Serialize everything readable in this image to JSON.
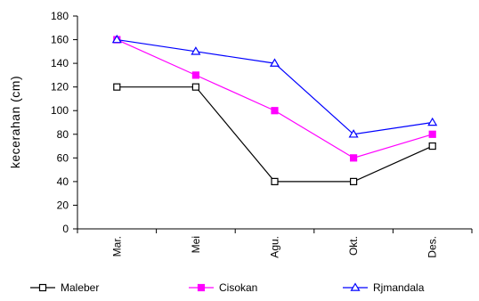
{
  "chart_data": {
    "type": "line",
    "categories": [
      "Mar.",
      "Mei",
      "Agu.",
      "Okt.",
      "Des."
    ],
    "ylabel": "kecerahan (cm)",
    "xlabel": "",
    "ylim": [
      0,
      180
    ],
    "yticks": [
      0,
      20,
      40,
      60,
      80,
      100,
      120,
      140,
      160,
      180
    ],
    "grid": false,
    "legend_position": "bottom",
    "series": [
      {
        "name": "Maleber",
        "values": [
          120,
          120,
          40,
          40,
          70
        ],
        "color": "#000000",
        "marker": "square-open"
      },
      {
        "name": "Cisokan",
        "values": [
          160,
          130,
          100,
          60,
          80
        ],
        "color": "#ff00ff",
        "marker": "square-filled"
      },
      {
        "name": "Rjmandala",
        "values": [
          160,
          150,
          140,
          80,
          90
        ],
        "color": "#0000ff",
        "marker": "triangle-open"
      }
    ]
  }
}
